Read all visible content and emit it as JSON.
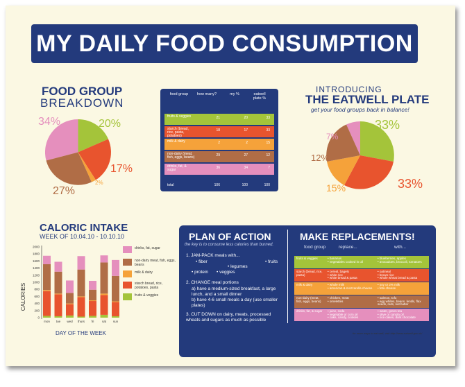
{
  "title": "MY DAILY FOOD CONSUMPTION",
  "food_group": {
    "title": "FOOD GROUP",
    "subtitle": "BREAKDOWN",
    "labels": [
      "34%",
      "20%",
      "17%",
      "2%",
      "27%"
    ]
  },
  "table": {
    "headers": [
      "food group",
      "how many?",
      "my %",
      "eatwell plate %"
    ],
    "rows": [
      {
        "name": "fruits & veggies",
        "how_many": "21",
        "my": "20",
        "eatwell": "33",
        "color": "#a4c43a"
      },
      {
        "name": "starch (bread, rice, pasta, potatoes)",
        "how_many": "18",
        "my": "17",
        "eatwell": "33",
        "color": "#e8542e"
      },
      {
        "name": "milk & dairy",
        "how_many": "2",
        "my": "2",
        "eatwell": "15",
        "color": "#f5a23a"
      },
      {
        "name": "non-dairy (meat, fish, eggs, beans)",
        "how_many": "29",
        "my": "27",
        "eatwell": "12",
        "color": "#b06d46"
      },
      {
        "name": "drinks, fat, & sugar",
        "how_many": "36",
        "my": "34",
        "eatwell": "7",
        "color": "#e58fbd"
      }
    ],
    "total": {
      "label": "total",
      "how_many": "106",
      "my": "100",
      "eatwell": "100"
    }
  },
  "eatwell": {
    "intro": "INTRODUCING",
    "title": "THE EATWELL PLATE",
    "subtitle": "get your food groups back in balance!",
    "labels": [
      "7%",
      "33%",
      "12%",
      "15%",
      "33%"
    ]
  },
  "caloric": {
    "title": "CALORIC INTAKE",
    "subtitle": "WEEK OF 10.04.10 - 10.10.10",
    "ylabel": "CALORIES",
    "xlabel": "DAY OF THE WEEK",
    "yticks": [
      "2000",
      "1800",
      "1600",
      "1400",
      "1200",
      "1000",
      "800",
      "600",
      "400",
      "200",
      "0"
    ],
    "legend": [
      {
        "label": "drinks, fat, sugar",
        "color": "#e58fbd"
      },
      {
        "label": "non-dairy meat, fish, eggs, beans",
        "color": "#b06d46"
      },
      {
        "label": "milk & dairy",
        "color": "#f5a23a"
      },
      {
        "label": "starch bread, rice, potatoes, pasta",
        "color": "#e8542e"
      },
      {
        "label": "fruits & veggies",
        "color": "#a4c43a"
      }
    ]
  },
  "chart_data": {
    "type": "bar",
    "stacked": true,
    "categories": [
      "mon",
      "tue",
      "wed",
      "thurs",
      "fri",
      "sat",
      "sun"
    ],
    "series": [
      {
        "name": "fruits & veggies",
        "values": [
          50,
          40,
          60,
          30,
          50,
          80,
          40
        ]
      },
      {
        "name": "starch",
        "values": [
          700,
          620,
          320,
          550,
          420,
          560,
          400
        ]
      },
      {
        "name": "milk & dairy",
        "values": [
          30,
          20,
          20,
          20,
          20,
          40,
          20
        ]
      },
      {
        "name": "non-dairy",
        "values": [
          730,
          620,
          300,
          760,
          300,
          880,
          720
        ]
      },
      {
        "name": "drinks, fat, sugar",
        "values": [
          240,
          280,
          350,
          380,
          250,
          200,
          450
        ]
      }
    ],
    "ylim": [
      0,
      2000
    ],
    "xlabel": "DAY OF THE WEEK",
    "ylabel": "CALORIES"
  },
  "plan": {
    "title": "PLAN OF ACTION",
    "tagline": "the key is to consume less calories than burned.",
    "item1_head": "1.  JAM-PACK meals with...",
    "item1_fiber": "• fiber",
    "item1_fruits": "• fruits",
    "item1_legumes": "• legumes",
    "item1_protein": "• protein",
    "item1_veggies": "• veggies",
    "item2_head": "2.  CHANGE meal portions",
    "item2_a": "a) have a medium-sized breakfast, a large lunch, and a small dinner",
    "item2_b": "b) have 4-6 small meals a day (use smaller plates)",
    "item3_head": "3.  CUT DOWN on dairy, meats, processed wheats and sugars as much as possible"
  },
  "replacements": {
    "title": "MAKE REPLACEMENTS!",
    "col_group": "food group",
    "col_replace": "replace...",
    "col_with": "with...",
    "rows": [
      {
        "group": "fruits & veggies",
        "replace": "• bananas\n• vegetables cooked in oil",
        "with": "• blueberries, apples\n• avocadoes, broccoli, tomatoes",
        "color": "#a4c43a"
      },
      {
        "group": "starch (bread, rice, pasta)",
        "replace": "• cereal, bagels\n• white rice\n• white bread & pasta",
        "with": "• oatmeal\n• brown rice\n• whole wheat bread & pasta",
        "color": "#e8542e"
      },
      {
        "group": "milk & dairy",
        "replace": "• whole milk\n• american & mozzarella cheese",
        "with": "• soy or 2% milk\n• feta cheese",
        "color": "#f5a23a"
      },
      {
        "group": "non-dairy (meat, fish, eggs, beans)",
        "replace": "• chicken, meat\n• omelettes",
        "with": "• salmon, tofu\n• egg whites, beans, lentils, flax seeds, nuts, nut butter",
        "color": "#b06d46"
      },
      {
        "group": "drinks, fat, & sugar",
        "replace": "• juice, soda\n• vegetable or corn oil\n• cake, candy, cookies",
        "with": "• water, green tea\n• olive or canola oil\n• rice cakes, dark chocolate",
        "color": "#e58fbd"
      }
    ],
    "footnote": "for more ways to eat well, visit http://www.eatwell.gov.uk/"
  }
}
